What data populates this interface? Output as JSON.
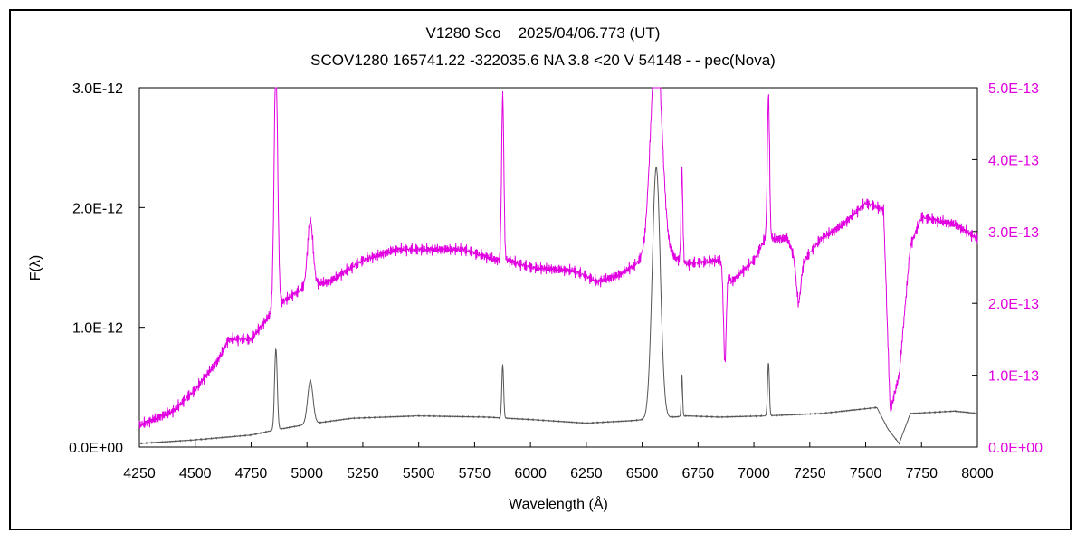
{
  "chart_data": {
    "type": "line",
    "title_line1": "V1280 Sco    2025/04/06.773 (UT)",
    "title_line2": "SCOV1280 165741.22 -322035.6 NA 3.8 <20 V 54148 - - pec(Nova)",
    "xlabel": "Wavelength (Å)",
    "ylabel_left": "F(λ)",
    "xlim": [
      4250,
      8000
    ],
    "ylim_left": [
      0,
      3e-12
    ],
    "ylim_right": [
      0,
      5e-13
    ],
    "x_ticks": [
      "4250",
      "4500",
      "4750",
      "5000",
      "5250",
      "5500",
      "5750",
      "6000",
      "6250",
      "6500",
      "6750",
      "7000",
      "7250",
      "7500",
      "7750",
      "8000"
    ],
    "y_left_ticks": [
      "0.0E+00",
      "1.0E-12",
      "2.0E-12",
      "3.0E-12"
    ],
    "y_right_ticks": [
      "0.0E+00",
      "1.0E-13",
      "2.0E-13",
      "3.0E-13",
      "4.0E-13",
      "5.0E-13"
    ],
    "grid": false,
    "colors": {
      "left_series": "#555555",
      "right_series": "#e000e0",
      "axis": "#000000"
    },
    "series": [
      {
        "axis": "left",
        "color": "#555555",
        "continuum": [
          [
            4250,
            3e-14
          ],
          [
            4500,
            6e-14
          ],
          [
            4750,
            1e-13
          ],
          [
            4850,
            1.4e-13
          ],
          [
            5000,
            1.9e-13
          ],
          [
            5200,
            2.4e-13
          ],
          [
            5500,
            2.6e-13
          ],
          [
            5800,
            2.5e-13
          ],
          [
            6000,
            2.3e-13
          ],
          [
            6250,
            2e-13
          ],
          [
            6450,
            2.2e-13
          ],
          [
            6700,
            2.6e-13
          ],
          [
            6850,
            2.5e-13
          ],
          [
            7050,
            2.6e-13
          ],
          [
            7300,
            2.8e-13
          ],
          [
            7550,
            3.3e-13
          ],
          [
            7600,
            1.5e-13
          ],
          [
            7650,
            3e-14
          ],
          [
            7700,
            2.8e-13
          ],
          [
            7900,
            3e-13
          ],
          [
            8000,
            2.8e-13
          ]
        ],
        "features": [
          [
            4861,
            6.8e-13,
            6
          ],
          [
            5015,
            3.6e-13,
            12
          ],
          [
            5876,
            4.5e-13,
            4
          ],
          [
            6563,
            2.1e-12,
            18
          ],
          [
            6678,
            3.5e-13,
            3
          ],
          [
            7065,
            4.5e-13,
            4
          ]
        ]
      },
      {
        "axis": "right",
        "color": "#e000e0",
        "continuum": [
          [
            4250,
            3e-14
          ],
          [
            4400,
            5e-14
          ],
          [
            4500,
            8e-14
          ],
          [
            4600,
            1.2e-13
          ],
          [
            4650,
            1.5e-13
          ],
          [
            4750,
            1.5e-13
          ],
          [
            4850,
            1.9e-13
          ],
          [
            4880,
            2e-13
          ],
          [
            5000,
            2.25e-13
          ],
          [
            5100,
            2.3e-13
          ],
          [
            5250,
            2.6e-13
          ],
          [
            5400,
            2.75e-13
          ],
          [
            5500,
            2.75e-13
          ],
          [
            5700,
            2.75e-13
          ],
          [
            5850,
            2.6e-13
          ],
          [
            5900,
            2.6e-13
          ],
          [
            6000,
            2.5e-13
          ],
          [
            6200,
            2.45e-13
          ],
          [
            6300,
            2.3e-13
          ],
          [
            6400,
            2.4e-13
          ],
          [
            6500,
            2.6e-13
          ],
          [
            6600,
            2.7e-13
          ],
          [
            6700,
            2.55e-13
          ],
          [
            6850,
            2.6e-13
          ],
          [
            6900,
            2.3e-13
          ],
          [
            7000,
            2.6e-13
          ],
          [
            7050,
            2.9e-13
          ],
          [
            7150,
            2.9e-13
          ],
          [
            7200,
            2.5e-13
          ],
          [
            7300,
            2.9e-13
          ],
          [
            7400,
            3.1e-13
          ],
          [
            7500,
            3.4e-13
          ],
          [
            7580,
            3.3e-13
          ],
          [
            7610,
            5e-14
          ],
          [
            7650,
            1e-13
          ],
          [
            7700,
            2.8e-13
          ],
          [
            7750,
            3.2e-13
          ],
          [
            7900,
            3.1e-13
          ],
          [
            8000,
            2.9e-13
          ]
        ],
        "features": [
          [
            4861,
            3.4e-13,
            8
          ],
          [
            5015,
            9e-14,
            12
          ],
          [
            5876,
            2.3e-13,
            5
          ],
          [
            6563,
            3e-13,
            25
          ],
          [
            6678,
            1.3e-13,
            4
          ],
          [
            6870,
            -1.3e-13,
            6
          ],
          [
            7065,
            2e-13,
            5
          ],
          [
            7200,
            -5e-14,
            10
          ]
        ]
      }
    ]
  }
}
